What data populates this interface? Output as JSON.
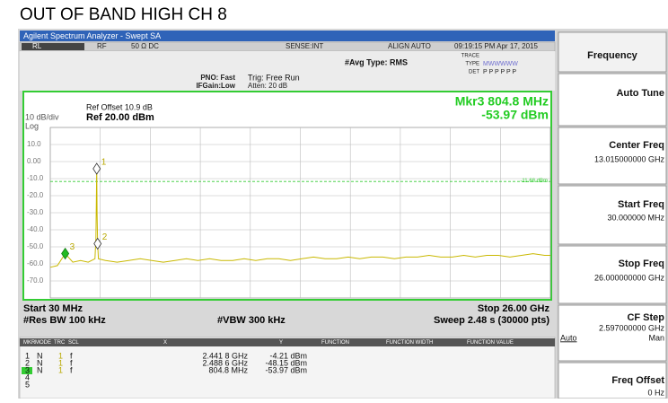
{
  "title": "OUT OF BAND HIGH CH 8",
  "window_title": "Agilent Spectrum Analyzer - Swept SA",
  "status": {
    "rl": "RL",
    "rf": "RF",
    "impedance": "50 Ω  DC",
    "sense": "SENSE:INT",
    "align": "ALIGN AUTO",
    "timestamp": "09:19:15 PM Apr 17, 2015"
  },
  "settings": {
    "pno": "PNO: Fast",
    "ifgain": "IFGain:Low",
    "trig": "Trig: Free Run",
    "atten": "Atten: 20 dB",
    "avg": "#Avg Type: RMS",
    "trace_label": "TRACE",
    "trace_nums": [
      "1",
      "2",
      "3",
      "4",
      "5",
      "6"
    ],
    "type_label": "TYPE",
    "type_value": "MWWWWW",
    "det_label": "DET",
    "det_value": "P P P P P P"
  },
  "softkeys": {
    "header": "Frequency",
    "auto_tune": "Auto Tune",
    "center_freq": {
      "label": "Center Freq",
      "value": "13.015000000 GHz"
    },
    "start_freq": {
      "label": "Start Freq",
      "value": "30.000000 MHz"
    },
    "stop_freq": {
      "label": "Stop Freq",
      "value": "26.000000000 GHz"
    },
    "cf_step": {
      "label": "CF Step",
      "value": "2.597000000 GHz",
      "auto": "Auto",
      "man": "Man"
    },
    "freq_offset": {
      "label": "Freq Offset",
      "value": "0 Hz"
    }
  },
  "chart_data": {
    "type": "line",
    "ref_offset": "Ref Offset 10.9 dB",
    "ref_level": "Ref 20.00 dBm",
    "scale": "10 dB/div",
    "scale_type": "Log",
    "marker_readout": [
      "Mkr3 804.8 MHz",
      "-53.97 dBm"
    ],
    "x": [
      0.03,
      0.4,
      0.8048,
      1.2,
      1.6,
      2.0,
      2.35,
      2.4,
      2.4418,
      2.46,
      2.4886,
      2.53,
      2.9,
      3.5,
      4.1,
      4.7,
      5.3,
      5.9,
      6.5,
      7.1,
      7.7,
      8.3,
      8.9,
      9.5,
      10.1,
      10.7,
      11.3,
      11.9,
      12.5,
      13.1,
      13.7,
      14.3,
      14.9,
      15.5,
      16.1,
      16.7,
      17.3,
      17.9,
      18.5,
      19.1,
      19.7,
      20.3,
      20.9,
      21.5,
      22.1,
      22.7,
      23.3,
      23.9,
      24.5,
      25.1,
      25.7,
      26
    ],
    "series": [
      {
        "color": "#c9b800",
        "values": [
          -62,
          -61,
          -53.97,
          -59,
          -58,
          -59,
          -57,
          -45,
          -4.21,
          -30,
          -48.15,
          -57,
          -58,
          -59,
          -58,
          -57,
          -58,
          -59,
          -58,
          -57,
          -58,
          -57,
          -58,
          -58,
          -57,
          -58,
          -57,
          -57,
          -58,
          -57,
          -56,
          -57,
          -57,
          -56,
          -57,
          -56,
          -56,
          -57,
          -56,
          -56,
          -55,
          -56,
          -56,
          -55,
          -56,
          -55,
          -55,
          -56,
          -55,
          -54,
          -55,
          -55
        ]
      }
    ],
    "xlim": [
      0.03,
      26
    ],
    "ylim": [
      -80,
      20
    ],
    "yticks": [
      {
        "value": 10,
        "label": "10.0"
      },
      {
        "value": 0,
        "label": "0.00"
      },
      {
        "value": -10,
        "label": "-10.0"
      },
      {
        "value": -20,
        "label": "-20.0"
      },
      {
        "value": -30,
        "label": "-30.0"
      },
      {
        "value": -40,
        "label": "-40.0"
      },
      {
        "value": -50,
        "label": "-50.0"
      },
      {
        "value": -60,
        "label": "-60.0"
      },
      {
        "value": -70,
        "label": "-70.0"
      }
    ],
    "grid": true,
    "display_line": {
      "value": -11.68,
      "label": "-11.68 dBm"
    },
    "markers": [
      {
        "label": "1",
        "x": 2.4418,
        "y": -4.21
      },
      {
        "label": "2",
        "x": 2.4886,
        "y": -48.15
      },
      {
        "label": "3",
        "x": 0.8048,
        "y": -53.97
      }
    ],
    "start": "Start 30 MHz",
    "stop": "Stop 26.00 GHz",
    "rbw": "#Res BW 100 kHz",
    "vbw": "#VBW 300 kHz",
    "sweep": "Sweep 2.48 s (30000 pts)"
  },
  "marker_table": {
    "headers": [
      "MKR",
      "MODE",
      "TRC",
      "SCL",
      "X",
      "Y",
      "FUNCTION",
      "FUNCTION WIDTH",
      "FUNCTION VALUE"
    ],
    "rows": [
      [
        "1",
        "N",
        "1",
        "f",
        "2.441 8 GHz",
        "-4.21 dBm"
      ],
      [
        "2",
        "N",
        "1",
        "f",
        "2.488 6 GHz",
        "-48.15 dBm"
      ],
      [
        "3",
        "N",
        "1",
        "f",
        "804.8 MHz",
        "-53.97 dBm"
      ],
      [
        "4"
      ],
      [
        "5"
      ]
    ]
  }
}
